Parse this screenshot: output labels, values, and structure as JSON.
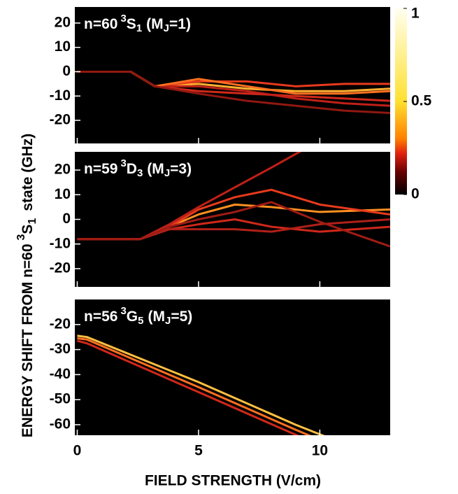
{
  "chart_data": [
    {
      "type": "line",
      "label": {
        "n": "n=60",
        "sup": "3",
        "term": "S",
        "sub": "1",
        "mj": "(M",
        "mj_sub": "J",
        "mj_val": "=1)"
      },
      "xlim": [
        -0.1,
        12.9
      ],
      "ylim": [
        -29.5,
        26.6
      ],
      "yticks": [
        -20,
        -10,
        0,
        10,
        20
      ],
      "x": [
        0,
        2.2,
        3.2,
        5,
        7,
        9,
        11,
        12.9
      ],
      "series": [
        {
          "color": "#ffb030",
          "values": [
            0,
            0,
            -6,
            -5,
            -7,
            -8,
            -8,
            -7
          ]
        },
        {
          "color": "#e83a1c",
          "values": [
            0,
            0,
            -6,
            -4,
            -4,
            -6,
            -5,
            -5
          ]
        },
        {
          "color": "#d0281a",
          "values": [
            0,
            0,
            -6,
            -8,
            -9,
            -10,
            -11,
            -12
          ]
        },
        {
          "color": "#c02018",
          "values": [
            0,
            0,
            -6,
            -6,
            -8,
            -11,
            -13,
            -14
          ]
        },
        {
          "color": "#ff7020",
          "values": [
            0,
            0,
            -6,
            -3,
            -6,
            -9,
            -9,
            -8
          ]
        },
        {
          "color": "#901810",
          "values": [
            0,
            0,
            -6,
            -9,
            -12,
            -14,
            -16,
            -17
          ]
        }
      ],
      "colorbar": {
        "lim": [
          0,
          1
        ],
        "ticks": [
          0,
          0.5,
          1
        ]
      }
    },
    {
      "type": "line",
      "label": {
        "n": "n=59",
        "sup": "3",
        "term": "D",
        "sub": "3",
        "mj": "(M",
        "mj_sub": "J",
        "mj_val": "=3)"
      },
      "ylabel": {
        "main": "ENERGY SHIFT FROM n=60",
        "sup": "3",
        "term": "S",
        "sub": "1",
        "tail": "state (GHz)"
      },
      "xlim": [
        -0.1,
        12.9
      ],
      "ylim": [
        -27.4,
        27.4
      ],
      "yticks": [
        -20,
        -10,
        0,
        10,
        20
      ],
      "x": [
        0,
        2.6,
        3.8,
        5,
        6.5,
        8,
        10,
        12.9
      ],
      "series": [
        {
          "color": "#ff9020",
          "values": [
            -8,
            -8,
            -3,
            2,
            6,
            5,
            3,
            4
          ]
        },
        {
          "color": "#e83a1c",
          "values": [
            -8,
            -8,
            -3,
            4,
            9,
            12,
            6,
            2
          ]
        },
        {
          "color": "#c02018",
          "values": [
            -8,
            -8,
            -2,
            5,
            13,
            21,
            32,
            42
          ]
        },
        {
          "color": "#d0281a",
          "values": [
            -8,
            -8,
            -4,
            -2,
            0,
            -3,
            -5,
            -3
          ]
        },
        {
          "color": "#b02018",
          "values": [
            -8,
            -8,
            -4,
            -4,
            -4,
            -5,
            -2,
            0
          ]
        },
        {
          "color": "#a01c14",
          "values": [
            -8,
            -8,
            -3,
            0,
            3,
            7,
            -1,
            -11
          ]
        }
      ]
    },
    {
      "type": "line",
      "label": {
        "n": "n=56",
        "sup": "3",
        "term": "G",
        "sub": "5",
        "mj": "(M",
        "mj_sub": "J",
        "mj_val": "=5)"
      },
      "xlabel": "FIELD STRENGTH (V/cm)",
      "xlim": [
        -0.1,
        12.9
      ],
      "ylim": [
        -64.2,
        -10
      ],
      "yticks": [
        -60,
        -50,
        -40,
        -30,
        -20
      ],
      "xticks": [
        0,
        5,
        10
      ],
      "x": [
        0,
        0.4,
        5,
        9,
        12.9
      ],
      "series": [
        {
          "color": "#ffc040",
          "values": [
            -24.5,
            -25,
            -43,
            -60,
            -75
          ]
        },
        {
          "color": "#ff7020",
          "values": [
            -25.5,
            -26,
            -45,
            -62,
            -78
          ]
        },
        {
          "color": "#d0281a",
          "values": [
            -26.5,
            -27.5,
            -47,
            -64,
            -80
          ]
        }
      ]
    }
  ]
}
